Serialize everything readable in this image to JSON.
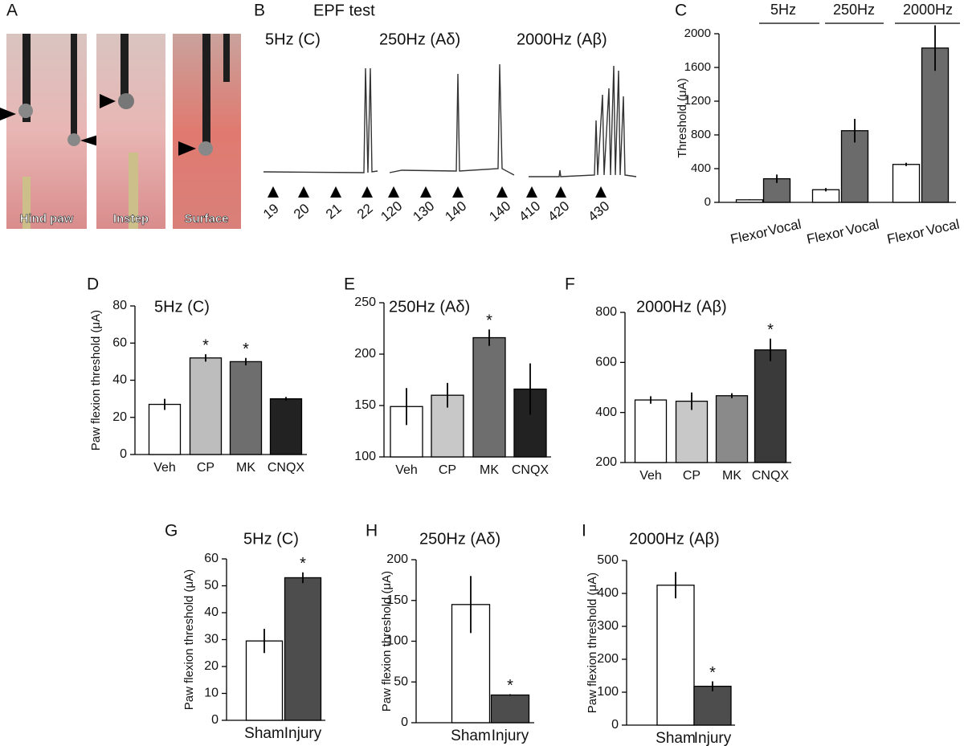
{
  "panel_a": {
    "label": "A",
    "photos": [
      "Hind paw",
      "Instep",
      "Surface"
    ]
  },
  "panel_b": {
    "label": "B",
    "title": "EPF test",
    "traces": [
      {
        "name": "5Hz (C)",
        "stimuli": [
          19,
          20,
          21,
          22
        ]
      },
      {
        "name": "250Hz (Aδ)",
        "stimuli": [
          120,
          130,
          140,
          140
        ]
      },
      {
        "name": "2000Hz (Aβ)",
        "stimuli": [
          410,
          420,
          430
        ]
      }
    ]
  },
  "chart_data": [
    {
      "type": "bar",
      "panel": "C",
      "y_label": "Threshold (μA)",
      "groups": [
        "5Hz",
        "250Hz",
        "2000Hz"
      ],
      "categories": [
        "Flexor",
        "Vocal",
        "Flexor",
        "Vocal",
        "Flexor",
        "Vocal"
      ],
      "values": [
        30,
        280,
        150,
        850,
        450,
        1830
      ],
      "errors": [
        5,
        50,
        20,
        140,
        20,
        270
      ],
      "colors": [
        "#ffffff",
        "#6b6b6b",
        "#ffffff",
        "#6b6b6b",
        "#ffffff",
        "#6b6b6b"
      ],
      "ylim": [
        0,
        2000
      ],
      "yticks": [
        0,
        400,
        800,
        1200,
        1600,
        2000
      ]
    },
    {
      "type": "bar",
      "panel": "D",
      "title": "5Hz (C)",
      "y_label": "Paw flexion threshold (μA)",
      "categories": [
        "Veh",
        "CP",
        "MK",
        "CNQX"
      ],
      "values": [
        27,
        52,
        50,
        30
      ],
      "errors": [
        3,
        2,
        2,
        1
      ],
      "annotations": [
        null,
        "*",
        "*",
        null
      ],
      "colors": [
        "#ffffff",
        "#bdbdbd",
        "#6e6e6e",
        "#222222"
      ],
      "ylim": [
        0,
        80
      ],
      "yticks": [
        0,
        20,
        40,
        60,
        80
      ]
    },
    {
      "type": "bar",
      "panel": "E",
      "title": "250Hz (Aδ)",
      "categories": [
        "Veh",
        "CP",
        "MK",
        "CNQX"
      ],
      "values": [
        149,
        160,
        216,
        166
      ],
      "errors": [
        18,
        12,
        8,
        25
      ],
      "annotations": [
        null,
        null,
        "*",
        null
      ],
      "colors": [
        "#ffffff",
        "#c8c8c8",
        "#6e6e6e",
        "#222222"
      ],
      "ylim": [
        100,
        250
      ],
      "yticks": [
        100,
        150,
        200,
        250
      ]
    },
    {
      "type": "bar",
      "panel": "F",
      "title": "2000Hz (Aβ)",
      "categories": [
        "Veh",
        "CP",
        "MK",
        "CNQX"
      ],
      "values": [
        450,
        445,
        467,
        650
      ],
      "errors": [
        15,
        35,
        10,
        45
      ],
      "annotations": [
        null,
        null,
        null,
        "*"
      ],
      "colors": [
        "#ffffff",
        "#c8c8c8",
        "#8a8a8a",
        "#3a3a3a"
      ],
      "ylim": [
        200,
        800
      ],
      "yticks": [
        200,
        400,
        600,
        800
      ]
    },
    {
      "type": "bar",
      "panel": "G",
      "title": "5Hz (C)",
      "y_label": "Paw flexion threshold (μA)",
      "categories": [
        "Sham",
        "Injury"
      ],
      "values": [
        29.5,
        53
      ],
      "errors": [
        4.5,
        2
      ],
      "annotations": [
        null,
        "*"
      ],
      "colors": [
        "#ffffff",
        "#4d4d4d"
      ],
      "ylim": [
        0,
        60
      ],
      "yticks": [
        0,
        10,
        20,
        30,
        40,
        50,
        60
      ]
    },
    {
      "type": "bar",
      "panel": "H",
      "title": "250Hz (Aδ)",
      "y_label": "Paw flexion threshold (μA)",
      "categories": [
        "Sham",
        "Injury"
      ],
      "values": [
        145,
        34
      ],
      "errors": [
        35,
        1
      ],
      "annotations": [
        null,
        "*"
      ],
      "colors": [
        "#ffffff",
        "#4d4d4d"
      ],
      "ylim": [
        0,
        200
      ],
      "yticks": [
        0,
        50,
        100,
        150,
        200
      ]
    },
    {
      "type": "bar",
      "panel": "I",
      "title": "2000Hz (Aβ)",
      "y_label": "Paw flexion threshold (μA)",
      "categories": [
        "Sham",
        "Injury"
      ],
      "values": [
        425,
        118
      ],
      "errors": [
        40,
        15
      ],
      "annotations": [
        null,
        "*"
      ],
      "colors": [
        "#ffffff",
        "#4d4d4d"
      ],
      "ylim": [
        0,
        500
      ],
      "yticks": [
        0,
        100,
        200,
        300,
        400,
        500
      ]
    }
  ]
}
